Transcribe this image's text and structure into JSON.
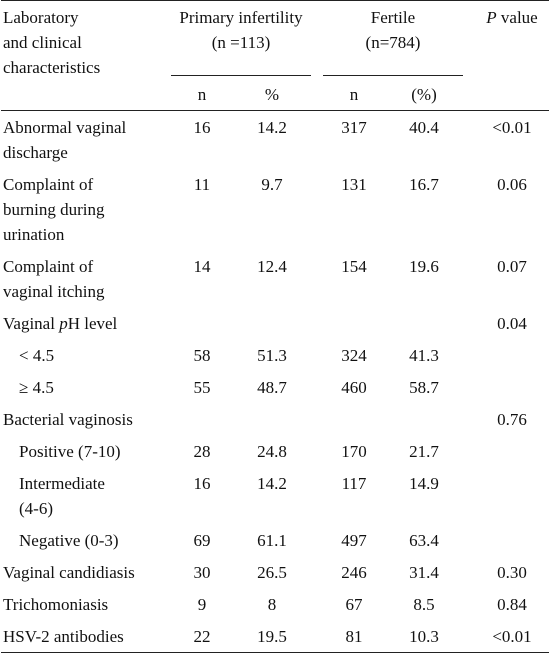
{
  "table": {
    "header": {
      "label": [
        "Laboratory",
        "and clinical",
        "characteristics"
      ],
      "groups": [
        {
          "name": "Primary infertility",
          "n": "(n =113)"
        },
        {
          "name": "Fertile",
          "n": "(n=784)"
        }
      ],
      "p_value": [
        "P",
        " value"
      ],
      "subheaders": [
        "n",
        "%",
        "n",
        "(%)"
      ]
    },
    "rows": [
      {
        "label": [
          "Abnormal vaginal",
          "discharge"
        ],
        "cells": [
          16,
          14.2,
          317,
          40.4,
          "<0.01"
        ]
      },
      {
        "label": [
          "Complaint of",
          "burning during",
          "urination"
        ],
        "cells": [
          11,
          9.7,
          131,
          16.7,
          "0.06"
        ]
      },
      {
        "label": [
          "Complaint of",
          "vaginal itching"
        ],
        "cells": [
          14,
          12.4,
          154,
          19.6,
          "0.07"
        ]
      },
      {
        "label_segments": [
          "Vaginal ",
          "p",
          "H level"
        ],
        "italic_segment": 1,
        "cells": [
          null,
          null,
          null,
          null,
          "0.04"
        ]
      },
      {
        "label": [
          "< 4.5"
        ],
        "indent": true,
        "cells": [
          58,
          51.3,
          324,
          41.3,
          null
        ]
      },
      {
        "label": [
          "≥ 4.5"
        ],
        "indent": true,
        "cells": [
          55,
          48.7,
          460,
          58.7,
          null
        ]
      },
      {
        "label": [
          "Bacterial vaginosis"
        ],
        "cells": [
          null,
          null,
          null,
          null,
          "0.76"
        ]
      },
      {
        "label": [
          "Positive (7-10)"
        ],
        "indent": true,
        "cells": [
          28,
          24.8,
          170,
          21.7,
          null
        ]
      },
      {
        "label": [
          "Intermediate",
          "(4-6)"
        ],
        "indent": true,
        "cells": [
          16,
          14.2,
          117,
          14.9,
          null
        ]
      },
      {
        "label": [
          "Negative (0-3)"
        ],
        "indent": true,
        "cells": [
          69,
          61.1,
          497,
          63.4,
          null
        ]
      },
      {
        "label": [
          "Vaginal candidiasis"
        ],
        "cells": [
          30,
          26.5,
          246,
          31.4,
          "0.30"
        ]
      },
      {
        "label": [
          "Trichomoniasis"
        ],
        "cells": [
          9,
          8.0,
          67,
          8.5,
          "0.84"
        ]
      },
      {
        "label": [
          "HSV-2 antibodies"
        ],
        "cells": [
          22,
          19.5,
          81,
          10.3,
          "<0.01"
        ]
      }
    ]
  }
}
